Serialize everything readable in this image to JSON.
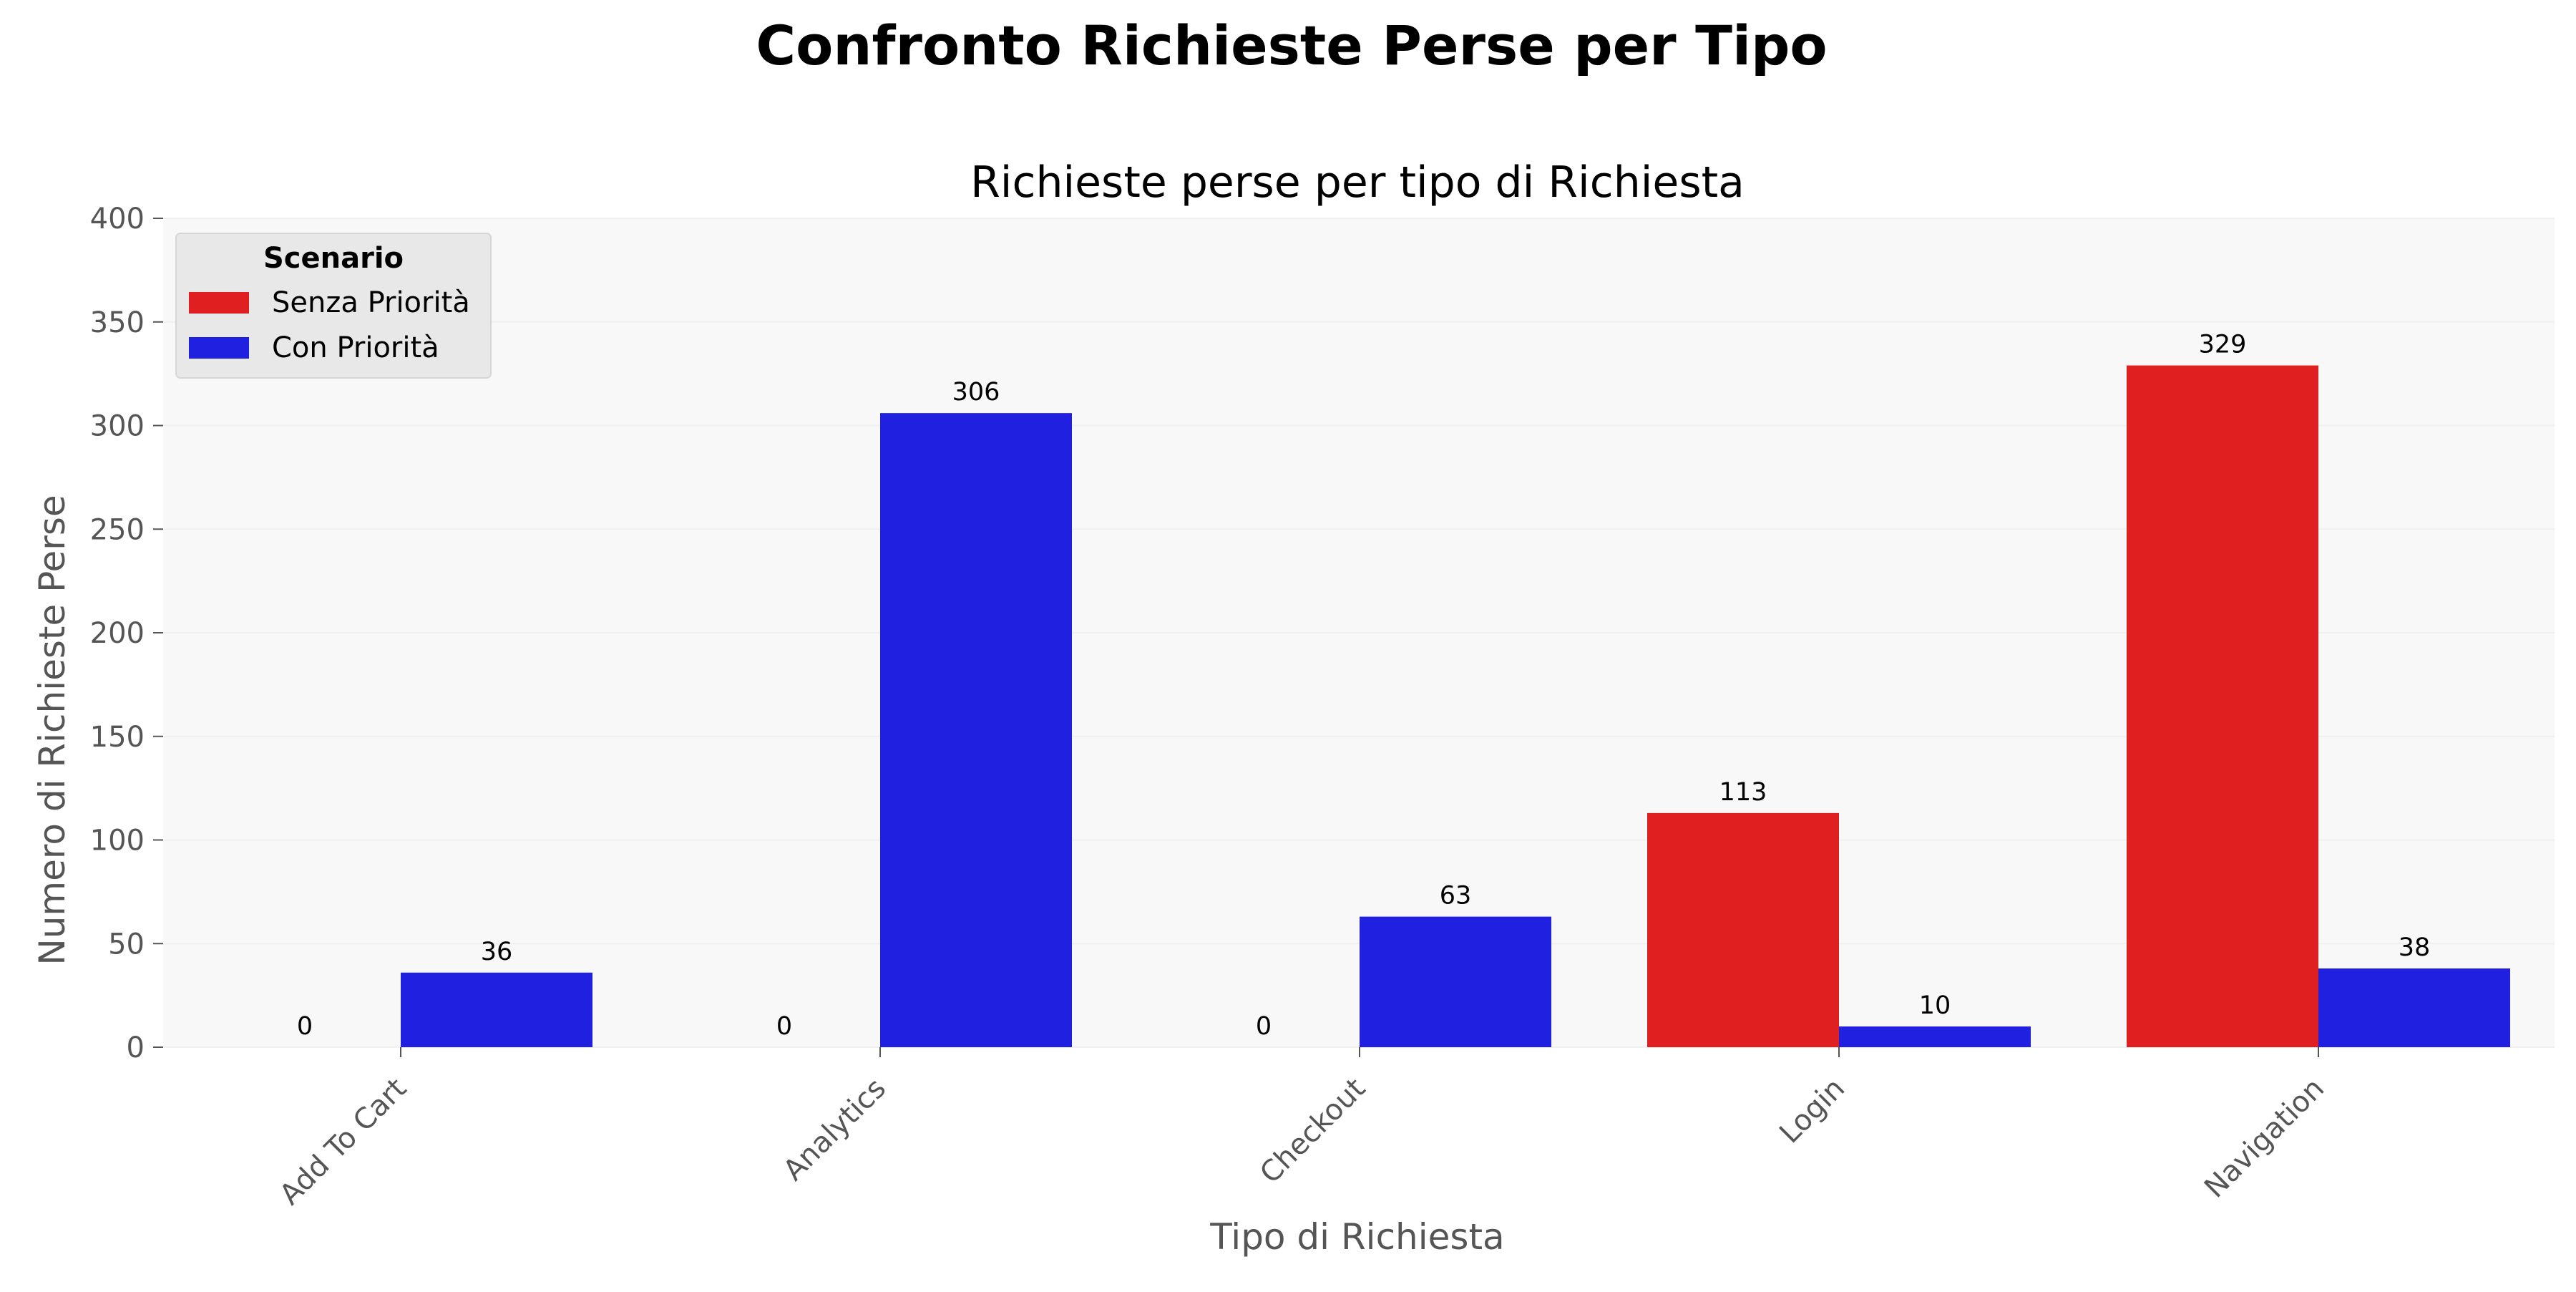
{
  "figure": {
    "suptitle": "Confronto Richieste Perse per Tipo"
  },
  "chart_data": {
    "type": "bar",
    "title": "Richieste perse per tipo di Richiesta",
    "xlabel": "Tipo di Richiesta",
    "ylabel": "Numero di Richieste Perse",
    "categories": [
      "Add To Cart",
      "Analytics",
      "Checkout",
      "Login",
      "Navigation"
    ],
    "series": [
      {
        "name": "Senza Priorità",
        "color": "#e02020",
        "values": [
          0,
          0,
          0,
          113,
          329
        ]
      },
      {
        "name": "Con Priorità",
        "color": "#2020e0",
        "values": [
          36,
          306,
          63,
          10,
          38
        ]
      }
    ],
    "ylim": [
      0,
      400
    ],
    "yticks": [
      0,
      50,
      100,
      150,
      200,
      250,
      300,
      350,
      400
    ],
    "grid": true,
    "legend": {
      "title": "Scenario",
      "position": "top-left"
    },
    "colors": {
      "axes_background": "#f8f8f8",
      "legend_background": "#e8e8e8"
    }
  }
}
